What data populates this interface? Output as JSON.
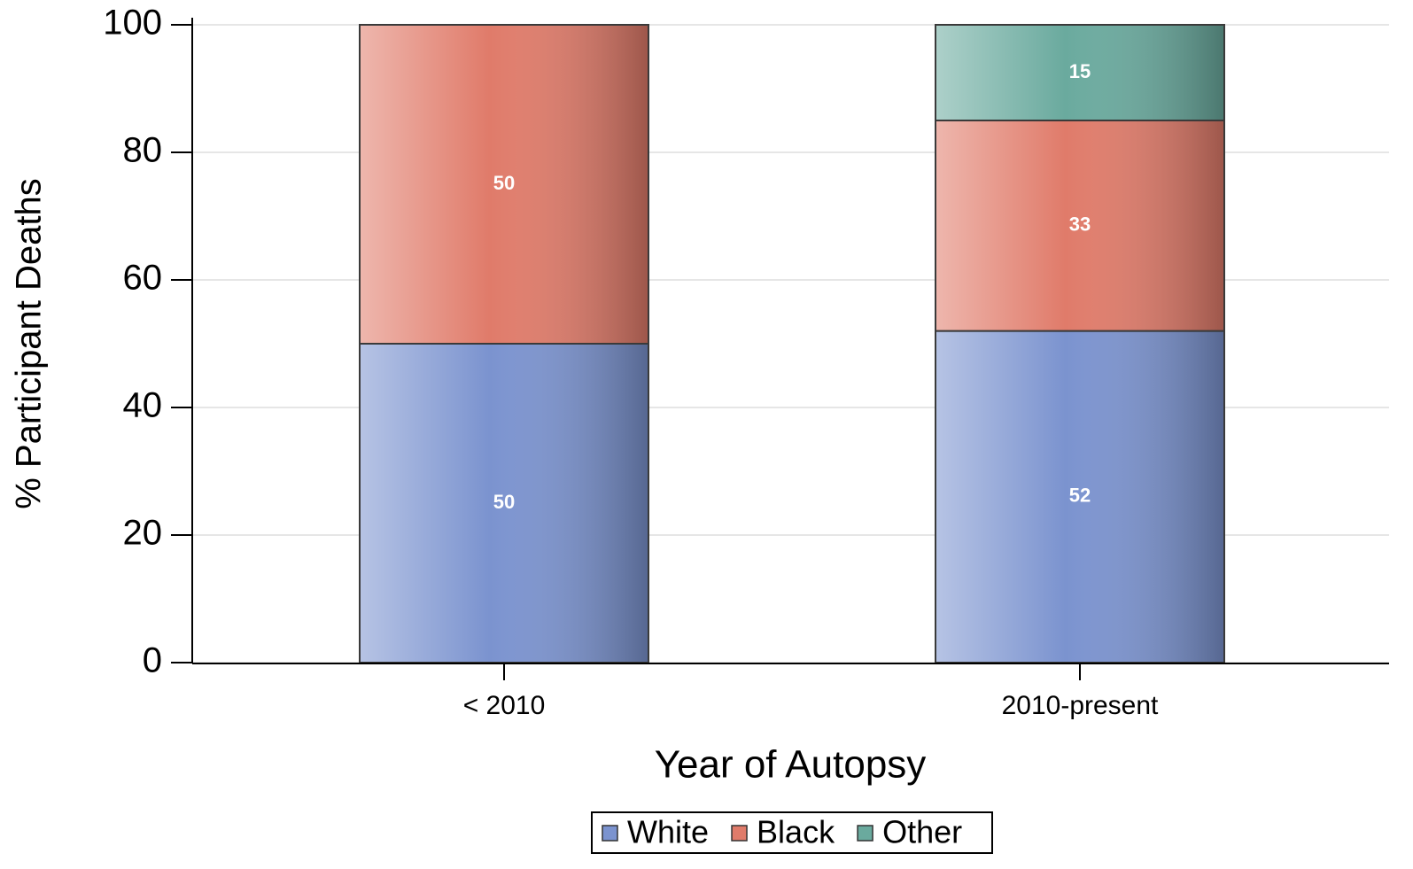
{
  "chart_data": {
    "type": "stacked_bar",
    "y_label": "% Participant Deaths",
    "x_label": "Year of Autopsy",
    "categories": [
      "< 2010",
      "2010-present"
    ],
    "series": [
      {
        "name": "White",
        "color": "#7b93cf",
        "values": [
          50,
          52
        ]
      },
      {
        "name": "Black",
        "color": "#e07b6a",
        "values": [
          50,
          33
        ]
      },
      {
        "name": "Other",
        "color": "#6aaa9e",
        "values": [
          null,
          15
        ]
      }
    ],
    "ylim": [
      0,
      100
    ],
    "yticks": [
      0,
      20,
      40,
      60,
      80,
      100
    ],
    "grid": true,
    "legend": "bottom"
  }
}
